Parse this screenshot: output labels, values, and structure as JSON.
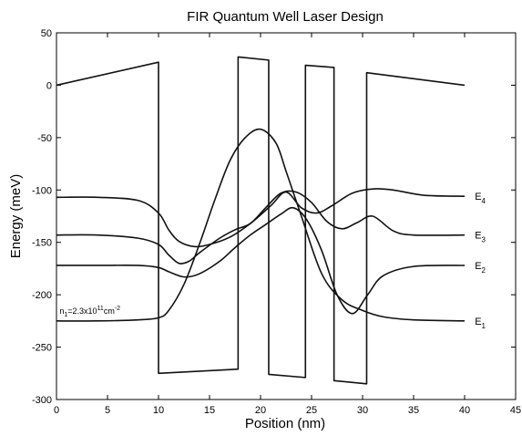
{
  "chart_data": {
    "type": "line",
    "title": "FIR Quantum Well Laser Design",
    "xlabel": "Position (nm)",
    "ylabel": "Energy (meV)",
    "xlim": [
      0,
      45
    ],
    "ylim": [
      -300,
      50
    ],
    "x_ticks": [
      "0",
      "5",
      "10",
      "15",
      "20",
      "25",
      "30",
      "35",
      "40",
      "45"
    ],
    "y_ticks": [
      "50",
      "0",
      "-50",
      "-100",
      "-150",
      "-200",
      "-250",
      "-300"
    ],
    "grid": false,
    "legend": "none",
    "annotation": {
      "text_parts": [
        "n",
        "1",
        "=2.3x10",
        "11",
        "cm",
        "-2"
      ],
      "position": [
        0.3,
        -218
      ]
    },
    "series": [
      {
        "key": "band_edge",
        "x": [
          0,
          10,
          10,
          17.8,
          17.8,
          20.8,
          20.8,
          24.4,
          24.4,
          27.2,
          27.2,
          30.4,
          30.4,
          40
        ],
        "values": [
          0,
          22,
          -275,
          -271,
          27,
          24,
          -276,
          -279,
          19,
          17,
          -282,
          -285,
          12,
          0
        ]
      },
      {
        "key": "psi1",
        "label": [
          "E",
          "1"
        ],
        "x": [
          0,
          4,
          8,
          10,
          11,
          12.5,
          14,
          15.5,
          17,
          18.5,
          20,
          21.5,
          22.5,
          24,
          26,
          28,
          30,
          32,
          35,
          40
        ],
        "values": [
          -225,
          -225,
          -224,
          -222,
          -215,
          -190,
          -152,
          -110,
          -72,
          -50,
          -42,
          -55,
          -82,
          -125,
          -180,
          -205,
          -215,
          -221,
          -224,
          -225
        ]
      },
      {
        "key": "psi2",
        "label": [
          "E",
          "2"
        ],
        "x": [
          0,
          4,
          8,
          10,
          11,
          12.5,
          14,
          16,
          17.5,
          19,
          20.5,
          22,
          23.2,
          24.5,
          26,
          27.5,
          29,
          30.5,
          32,
          35,
          40
        ],
        "values": [
          -172,
          -172,
          -172,
          -174,
          -178,
          -183,
          -180,
          -168,
          -155,
          -143,
          -133,
          -123,
          -117,
          -128,
          -158,
          -200,
          -218,
          -200,
          -182,
          -173,
          -172
        ]
      },
      {
        "key": "psi3",
        "label": [
          "E",
          "3"
        ],
        "x": [
          0,
          4,
          8,
          10,
          11,
          12,
          13,
          14,
          16,
          17.5,
          19,
          20.5,
          22,
          23.5,
          25,
          26.5,
          28,
          29.5,
          31,
          33,
          35,
          40
        ],
        "values": [
          -143,
          -143,
          -146,
          -152,
          -162,
          -170,
          -168,
          -160,
          -146,
          -138,
          -132,
          -117,
          -103,
          -102,
          -112,
          -130,
          -137,
          -131,
          -125,
          -139,
          -143,
          -143
        ]
      },
      {
        "key": "psi4",
        "label": [
          "E",
          "4"
        ],
        "x": [
          0,
          4,
          8,
          10,
          11,
          12,
          13.5,
          15,
          17,
          19,
          21,
          22.5,
          24,
          25.5,
          27,
          29,
          31,
          33,
          36,
          40
        ],
        "values": [
          -107,
          -107,
          -110,
          -122,
          -138,
          -149,
          -154,
          -152,
          -145,
          -132,
          -115,
          -102,
          -117,
          -122,
          -115,
          -103,
          -99,
          -100,
          -105,
          -106
        ]
      }
    ]
  }
}
